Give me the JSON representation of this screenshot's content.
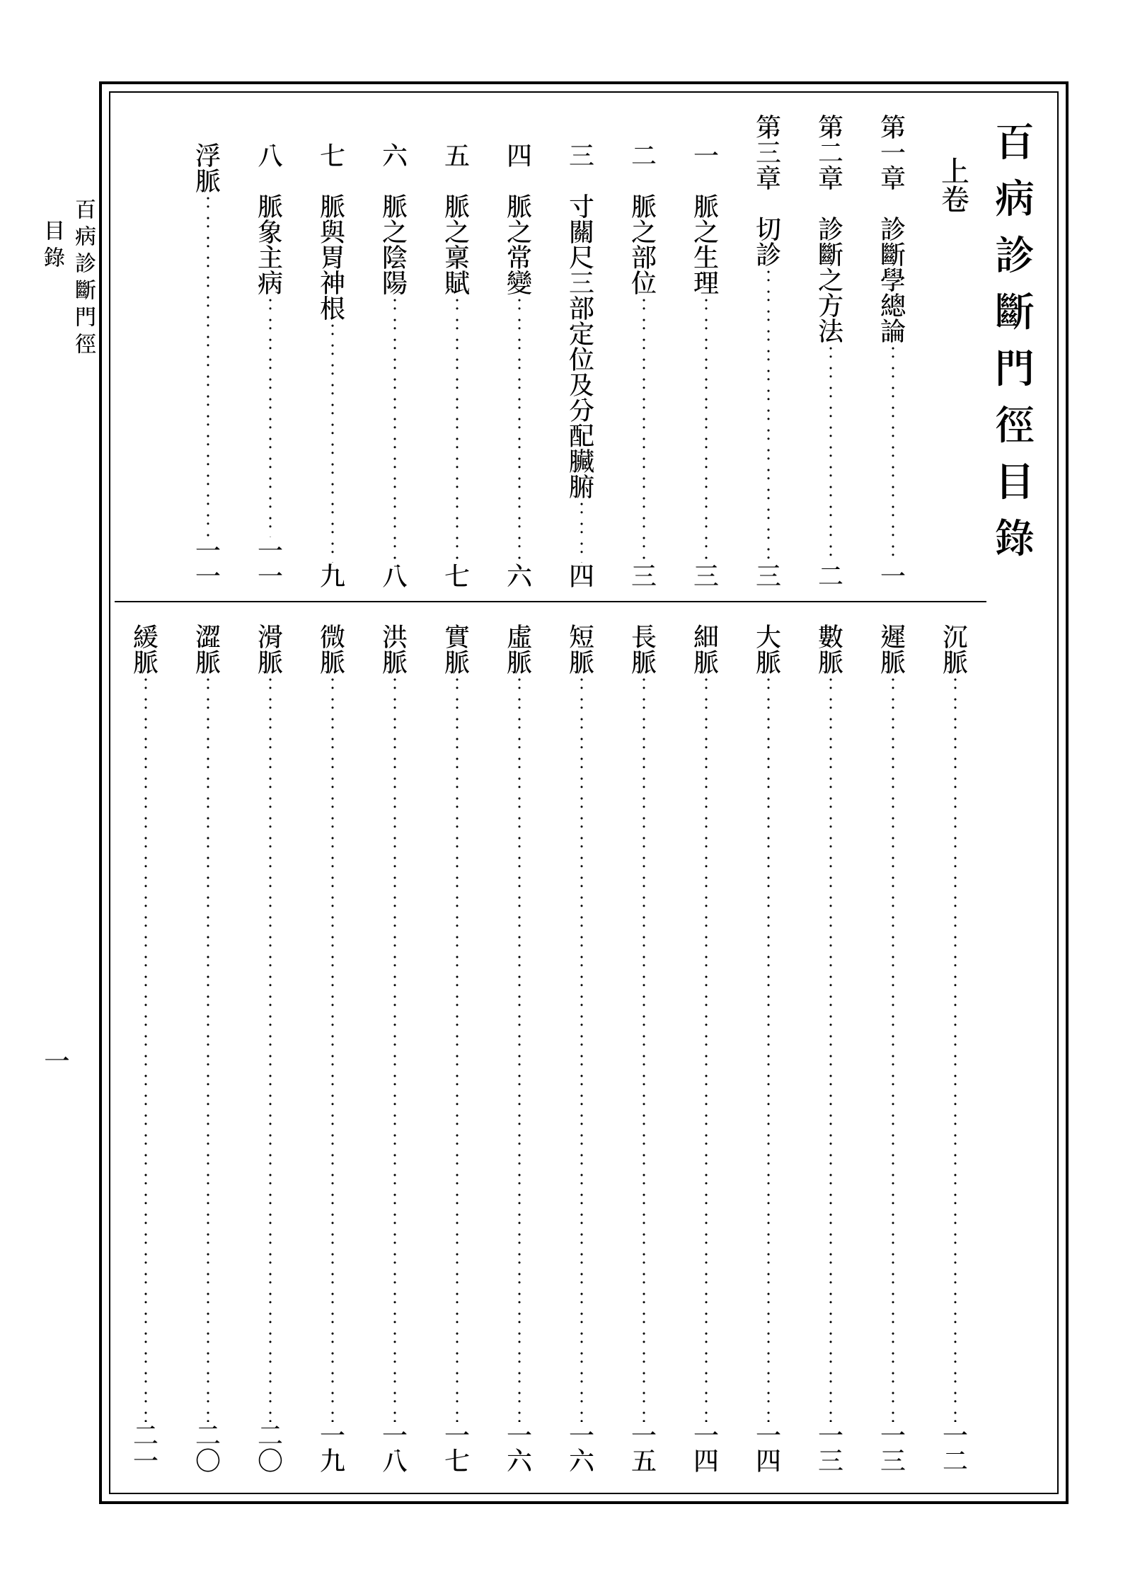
{
  "title": "百病診斷門徑目錄",
  "volume": "上卷",
  "margin": {
    "title": "百病診斷門徑",
    "section": "目錄",
    "page": "一"
  },
  "upper": [
    {
      "label": "第一章",
      "text": "診斷學總論",
      "page": "一",
      "indent": 1
    },
    {
      "label": "第二章",
      "text": "診斷之方法",
      "page": "二",
      "indent": 1
    },
    {
      "label": "第三章",
      "text": "切診",
      "page": "三",
      "indent": 1
    },
    {
      "label": "一",
      "text": "脈之生理",
      "page": "三",
      "indent": 2
    },
    {
      "label": "二",
      "text": "脈之部位",
      "page": "三",
      "indent": 2
    },
    {
      "label": "三",
      "text": "寸關尺三部定位及分配臟腑",
      "page": "四",
      "indent": 2
    },
    {
      "label": "四",
      "text": "脈之常變",
      "page": "六",
      "indent": 2
    },
    {
      "label": "五",
      "text": "脈之稟賦",
      "page": "七",
      "indent": 2
    },
    {
      "label": "六",
      "text": "脈之陰陽",
      "page": "八",
      "indent": 2
    },
    {
      "label": "七",
      "text": "脈與胃神根",
      "page": "九",
      "indent": 2
    },
    {
      "label": "八",
      "text": "脈象主病",
      "page": "一一",
      "indent": 2
    },
    {
      "label": "",
      "text": "浮脈",
      "page": "一一",
      "indent": 2
    }
  ],
  "lower": [
    {
      "text": "沉脈",
      "page": "一二"
    },
    {
      "text": "遲脈",
      "page": "一三"
    },
    {
      "text": "數脈",
      "page": "一三"
    },
    {
      "text": "大脈",
      "page": "一四"
    },
    {
      "text": "細脈",
      "page": "一四"
    },
    {
      "text": "長脈",
      "page": "一五"
    },
    {
      "text": "短脈",
      "page": "一六"
    },
    {
      "text": "虛脈",
      "page": "一六"
    },
    {
      "text": "實脈",
      "page": "一七"
    },
    {
      "text": "洪脈",
      "page": "一八"
    },
    {
      "text": "微脈",
      "page": "一九"
    },
    {
      "text": "滑脈",
      "page": "二〇"
    },
    {
      "text": "澀脈",
      "page": "二〇"
    },
    {
      "text": "緩脈",
      "page": "二一"
    }
  ],
  "colors": {
    "text": "#000000",
    "background": "#ffffff",
    "border": "#000000"
  },
  "typography": {
    "title_fontsize": 56,
    "body_fontsize": 36,
    "margin_fontsize": 30
  }
}
